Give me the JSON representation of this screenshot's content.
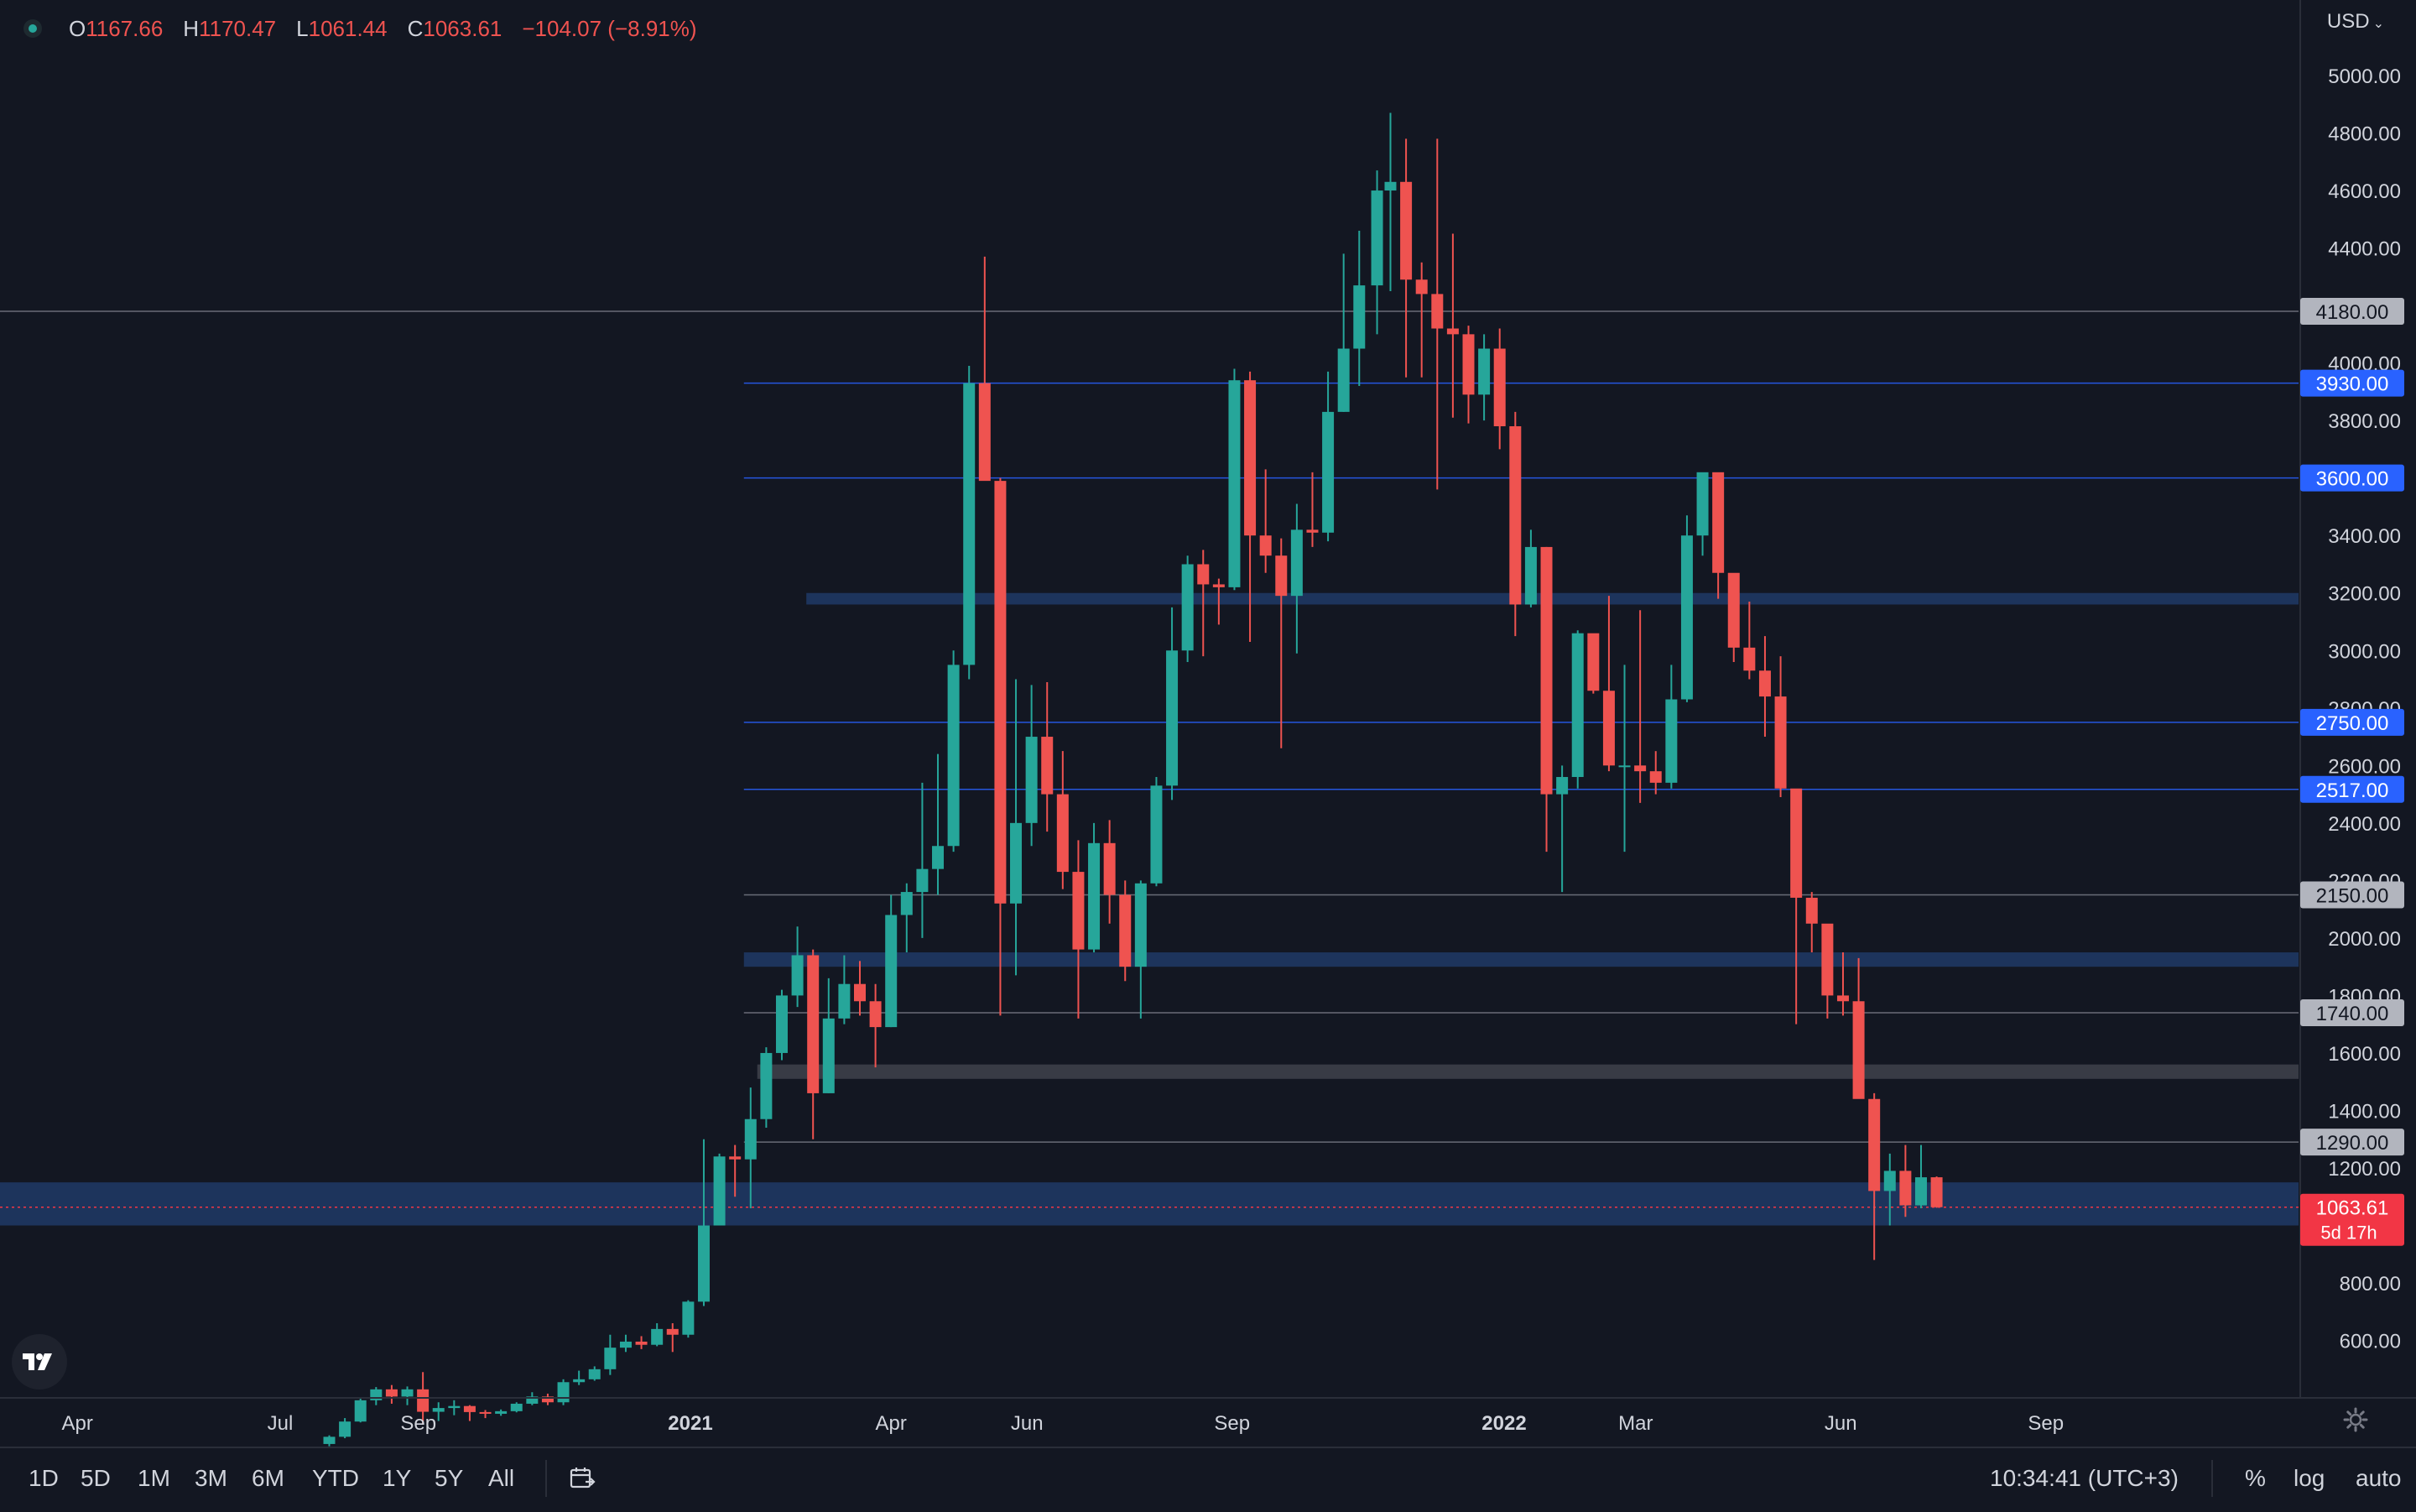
{
  "ohlc": {
    "o_label": "O",
    "o": "1167.66",
    "h_label": "H",
    "h": "1170.47",
    "l_label": "L",
    "l": "1061.44",
    "c_label": "C",
    "c": "1063.61",
    "change": "−104.07 (−8.91%)"
  },
  "currency": "USD",
  "status_dot_icon": "market-status-icon",
  "logo_icon": "tradingview-logo-icon",
  "colors": {
    "background": "#131722",
    "up": "#26a69a",
    "down": "#ef5350",
    "grid_text": "#d1d4dc",
    "zone_blue": "#1e3660",
    "zone_gray": "#3a3d48",
    "badge_blue": "#2962ff",
    "badge_gray": "#b2b5be",
    "badge_red": "#f23645"
  },
  "ranges": [
    "1D",
    "5D",
    "1M",
    "3M",
    "6M",
    "YTD",
    "1Y",
    "5Y",
    "All"
  ],
  "calendar_icon": "calendar-range-icon",
  "clock": "10:34:41 (UTC+3)",
  "options": {
    "percent": "%",
    "log": "log",
    "auto": "auto"
  },
  "settings_icon": "gear-icon",
  "chart_data": {
    "type": "candlestick",
    "interval": "weekly",
    "y_axis": {
      "side": "right",
      "scale": "linear",
      "range": [
        460,
        5090
      ],
      "ticks": [
        600,
        800,
        1200,
        1400,
        1600,
        1800,
        2000,
        2200,
        2400,
        2600,
        2800,
        3000,
        3200,
        3400,
        3800,
        4000,
        4400,
        4600,
        4800,
        5000
      ],
      "tick_labels": [
        "600.00",
        "800.00",
        "1200.00",
        "1400.00",
        "1600.00",
        "1800.00",
        "2000.00",
        "2200.00",
        "2400.00",
        "2600.00",
        "2800.00",
        "3000.00",
        "3200.00",
        "3400.00",
        "3800.00",
        "4000.00",
        "4400.00",
        "4600.00",
        "4800.00",
        "5000.00"
      ]
    },
    "x_axis": {
      "ticks": [
        {
          "date": "2020-04-01",
          "label": "Apr",
          "bold": false
        },
        {
          "date": "2020-07-01",
          "label": "Jul",
          "bold": false
        },
        {
          "date": "2020-09-01",
          "label": "Sep",
          "bold": false
        },
        {
          "date": "2021-01-01",
          "label": "2021",
          "bold": true
        },
        {
          "date": "2021-04-01",
          "label": "Apr",
          "bold": false
        },
        {
          "date": "2021-06-01",
          "label": "Jun",
          "bold": false
        },
        {
          "date": "2021-09-01",
          "label": "Sep",
          "bold": false
        },
        {
          "date": "2022-01-01",
          "label": "2022",
          "bold": true
        },
        {
          "date": "2022-03-01",
          "label": "Mar",
          "bold": false
        },
        {
          "date": "2022-06-01",
          "label": "Jun",
          "bold": false
        },
        {
          "date": "2022-09-01",
          "label": "Sep",
          "bold": false
        }
      ]
    },
    "levels": [
      {
        "price": 4180,
        "label": "4180.00",
        "style": "gray"
      },
      {
        "price": 3930,
        "label": "3930.00",
        "style": "blue"
      },
      {
        "price": 3600,
        "label": "3600.00",
        "style": "blue"
      },
      {
        "price": 2750,
        "label": "2750.00",
        "style": "blue"
      },
      {
        "price": 2517,
        "label": "2517.00",
        "style": "blue"
      },
      {
        "price": 2150,
        "label": "2150.00",
        "style": "gray"
      },
      {
        "price": 1740,
        "label": "1740.00",
        "style": "gray"
      },
      {
        "price": 1290,
        "label": "1290.00",
        "style": "gray"
      }
    ],
    "zones": [
      {
        "from": 3160,
        "to": 3200,
        "start": "2021-02-22",
        "color": "blue"
      },
      {
        "from": 1900,
        "to": 1950,
        "start": "2021-01-25",
        "color": "blue"
      },
      {
        "from": 1510,
        "to": 1560,
        "start": "2021-01-31",
        "color": "gray"
      },
      {
        "from": 1000,
        "to": 1150,
        "start": "2020-01-01",
        "color": "blue"
      }
    ],
    "last_price": {
      "price": 1063.61,
      "label": "1063.61",
      "countdown": "5d 17h"
    },
    "candles": [
      [
        "2020-07-20",
        240,
        270,
        232,
        265
      ],
      [
        "2020-07-27",
        265,
        330,
        260,
        318
      ],
      [
        "2020-08-03",
        318,
        400,
        315,
        392
      ],
      [
        "2020-08-10",
        392,
        438,
        375,
        430
      ],
      [
        "2020-08-17",
        430,
        445,
        380,
        405
      ],
      [
        "2020-08-24",
        405,
        440,
        375,
        430
      ],
      [
        "2020-08-31",
        430,
        490,
        310,
        352
      ],
      [
        "2020-09-07",
        352,
        385,
        320,
        365
      ],
      [
        "2020-09-14",
        365,
        392,
        340,
        372
      ],
      [
        "2020-09-21",
        372,
        375,
        320,
        351
      ],
      [
        "2020-09-28",
        351,
        358,
        330,
        345
      ],
      [
        "2020-10-05",
        345,
        360,
        338,
        354
      ],
      [
        "2020-10-12",
        354,
        385,
        350,
        380
      ],
      [
        "2020-10-19",
        380,
        420,
        375,
        405
      ],
      [
        "2020-10-26",
        405,
        415,
        375,
        385
      ],
      [
        "2020-11-02",
        385,
        465,
        375,
        455
      ],
      [
        "2020-11-09",
        455,
        495,
        445,
        465
      ],
      [
        "2020-11-16",
        465,
        510,
        460,
        500
      ],
      [
        "2020-11-23",
        500,
        620,
        480,
        575
      ],
      [
        "2020-11-30",
        575,
        620,
        560,
        596
      ],
      [
        "2020-12-07",
        596,
        615,
        570,
        585
      ],
      [
        "2020-12-14",
        585,
        660,
        580,
        640
      ],
      [
        "2020-12-21",
        640,
        660,
        560,
        620
      ],
      [
        "2020-12-28",
        620,
        740,
        610,
        735
      ],
      [
        "2021-01-04",
        735,
        1300,
        720,
        1000
      ],
      [
        "2021-01-11",
        1000,
        1250,
        1000,
        1240
      ],
      [
        "2021-01-18",
        1240,
        1280,
        1100,
        1230
      ],
      [
        "2021-01-25",
        1230,
        1480,
        1060,
        1370
      ],
      [
        "2021-02-01",
        1370,
        1620,
        1340,
        1600
      ],
      [
        "2021-02-08",
        1600,
        1820,
        1575,
        1800
      ],
      [
        "2021-02-15",
        1800,
        2040,
        1760,
        1940
      ],
      [
        "2021-02-22",
        1940,
        1960,
        1300,
        1460
      ],
      [
        "2021-03-01",
        1460,
        1860,
        1460,
        1720
      ],
      [
        "2021-03-08",
        1720,
        1940,
        1700,
        1840
      ],
      [
        "2021-03-15",
        1840,
        1920,
        1730,
        1780
      ],
      [
        "2021-03-22",
        1780,
        1840,
        1550,
        1690
      ],
      [
        "2021-03-29",
        1690,
        2150,
        1690,
        2080
      ],
      [
        "2021-04-05",
        2080,
        2190,
        1950,
        2160
      ],
      [
        "2021-04-12",
        2160,
        2540,
        2000,
        2240
      ],
      [
        "2021-04-19",
        2240,
        2640,
        2150,
        2320
      ],
      [
        "2021-04-26",
        2320,
        3000,
        2300,
        2950
      ],
      [
        "2021-05-03",
        2950,
        3990,
        2900,
        3930
      ],
      [
        "2021-05-10",
        3930,
        4370,
        3600,
        3590
      ],
      [
        "2021-05-17",
        3590,
        3600,
        1730,
        2120
      ],
      [
        "2021-05-24",
        2120,
        2900,
        1870,
        2400
      ],
      [
        "2021-05-31",
        2400,
        2880,
        2320,
        2700
      ],
      [
        "2021-06-07",
        2700,
        2890,
        2370,
        2500
      ],
      [
        "2021-06-14",
        2500,
        2650,
        2170,
        2230
      ],
      [
        "2021-06-21",
        2230,
        2340,
        1720,
        1960
      ],
      [
        "2021-06-28",
        1960,
        2400,
        1950,
        2330
      ],
      [
        "2021-07-05",
        2330,
        2410,
        2050,
        2150
      ],
      [
        "2021-07-12",
        2150,
        2200,
        1850,
        1900
      ],
      [
        "2021-07-19",
        1900,
        2200,
        1720,
        2190
      ],
      [
        "2021-07-26",
        2190,
        2560,
        2180,
        2530
      ],
      [
        "2021-08-02",
        2530,
        3150,
        2480,
        3000
      ],
      [
        "2021-08-09",
        3000,
        3330,
        2960,
        3300
      ],
      [
        "2021-08-16",
        3300,
        3350,
        2980,
        3230
      ],
      [
        "2021-08-23",
        3230,
        3250,
        3090,
        3220
      ],
      [
        "2021-08-30",
        3220,
        3980,
        3210,
        3940
      ],
      [
        "2021-09-06",
        3940,
        3970,
        3030,
        3400
      ],
      [
        "2021-09-13",
        3400,
        3630,
        3270,
        3330
      ],
      [
        "2021-09-20",
        3330,
        3390,
        2660,
        3190
      ],
      [
        "2021-09-27",
        3190,
        3510,
        2990,
        3420
      ],
      [
        "2021-10-04",
        3420,
        3620,
        3360,
        3410
      ],
      [
        "2021-10-11",
        3410,
        3970,
        3380,
        3830
      ],
      [
        "2021-10-18",
        3830,
        4380,
        3830,
        4050
      ],
      [
        "2021-10-25",
        4050,
        4460,
        3920,
        4270
      ],
      [
        "2021-11-02",
        4270,
        4670,
        4100,
        4600
      ],
      [
        "2021-11-08",
        4600,
        4870,
        4250,
        4630
      ],
      [
        "2021-11-15",
        4630,
        4780,
        3950,
        4290
      ],
      [
        "2021-11-22",
        4290,
        4350,
        3950,
        4240
      ],
      [
        "2021-11-29",
        4240,
        4780,
        3560,
        4120
      ],
      [
        "2021-12-06",
        4120,
        4450,
        3810,
        4100
      ],
      [
        "2021-12-13",
        4100,
        4130,
        3790,
        3890
      ],
      [
        "2021-12-20",
        3890,
        4100,
        3800,
        4050
      ],
      [
        "2021-12-27",
        4050,
        4120,
        3700,
        3780
      ],
      [
        "2022-01-03",
        3780,
        3830,
        3050,
        3160
      ],
      [
        "2022-01-10",
        3160,
        3420,
        3150,
        3360
      ],
      [
        "2022-01-17",
        3360,
        3360,
        2300,
        2500
      ],
      [
        "2022-01-24",
        2500,
        2600,
        2160,
        2560
      ],
      [
        "2022-01-31",
        2560,
        3070,
        2520,
        3060
      ],
      [
        "2022-02-07",
        3060,
        3050,
        2850,
        2860
      ],
      [
        "2022-02-14",
        2860,
        3190,
        2580,
        2600
      ],
      [
        "2022-02-21",
        2600,
        2950,
        2300,
        2600
      ],
      [
        "2022-02-28",
        2600,
        3140,
        2470,
        2580
      ],
      [
        "2022-03-07",
        2580,
        2650,
        2500,
        2540
      ],
      [
        "2022-03-14",
        2540,
        2950,
        2520,
        2830
      ],
      [
        "2022-03-21",
        2830,
        3470,
        2820,
        3400
      ],
      [
        "2022-03-28",
        3400,
        3580,
        3330,
        3620
      ],
      [
        "2022-04-04",
        3620,
        3580,
        3180,
        3270
      ],
      [
        "2022-04-11",
        3270,
        3240,
        2960,
        3010
      ],
      [
        "2022-04-18",
        3010,
        3170,
        2900,
        2930
      ],
      [
        "2022-04-25",
        2930,
        3050,
        2700,
        2840
      ],
      [
        "2022-05-02",
        2840,
        2980,
        2490,
        2520
      ],
      [
        "2022-05-09",
        2520,
        2510,
        1700,
        2140
      ],
      [
        "2022-05-16",
        2140,
        2160,
        1950,
        2050
      ],
      [
        "2022-05-23",
        2050,
        2020,
        1720,
        1800
      ],
      [
        "2022-05-30",
        1800,
        1950,
        1730,
        1780
      ],
      [
        "2022-06-06",
        1780,
        1930,
        1450,
        1440
      ],
      [
        "2022-06-13",
        1440,
        1460,
        880,
        1120
      ],
      [
        "2022-06-20",
        1120,
        1250,
        1000,
        1190
      ],
      [
        "2022-06-27",
        1190,
        1280,
        1030,
        1070
      ],
      [
        "2022-07-04",
        1070,
        1280,
        1060,
        1167.66
      ],
      [
        "2022-07-11",
        1167.66,
        1170.47,
        1061.44,
        1063.61
      ]
    ]
  }
}
